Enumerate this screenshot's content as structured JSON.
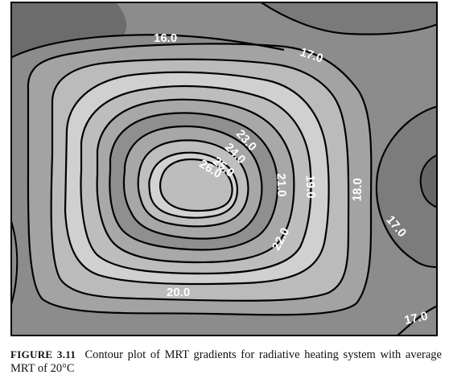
{
  "chart_data": {
    "type": "contour",
    "quantity": "MRT",
    "unit": "°C",
    "contour_levels": [
      16.0,
      17.0,
      18.0,
      19.0,
      20.0,
      21.0,
      22.0,
      23.0,
      24.0,
      25.0,
      26.0
    ],
    "labels": [
      {
        "text": "16.0"
      },
      {
        "text": "17.0"
      },
      {
        "text": "17.0"
      },
      {
        "text": "17.0"
      },
      {
        "text": "18.0"
      },
      {
        "text": "19.0"
      },
      {
        "text": "20.0"
      },
      {
        "text": "21.0"
      },
      {
        "text": "22.0"
      },
      {
        "text": "23.0"
      },
      {
        "text": "24.0"
      },
      {
        "text": "25.0"
      },
      {
        "text": "26.0"
      }
    ],
    "colors": {
      "darkest": "#666666",
      "dark": "#8c8c8c",
      "mid": "#a5a5a5",
      "light": "#bcbcbc",
      "lightest": "#d2d2d2",
      "line": "#000000"
    }
  },
  "caption": {
    "label": "FIGURE 3.11",
    "text": "Contour plot of MRT gradients for radiative heating system with average MRT of 20°C"
  }
}
